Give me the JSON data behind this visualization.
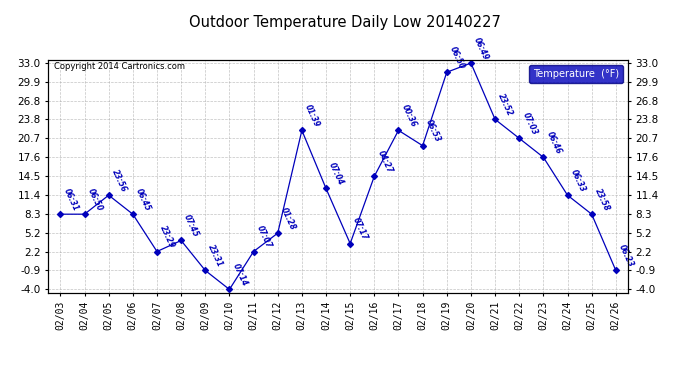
{
  "title": "Outdoor Temperature Daily Low 20140227",
  "copyright": "Copyright 2014 Cartronics.com",
  "legend_label": "Temperature  (°F)",
  "dates": [
    "02/03",
    "02/04",
    "02/05",
    "02/06",
    "02/07",
    "02/08",
    "02/09",
    "02/10",
    "02/11",
    "02/12",
    "02/13",
    "02/14",
    "02/15",
    "02/16",
    "02/17",
    "02/18",
    "02/19",
    "02/20",
    "02/21",
    "02/22",
    "02/23",
    "02/24",
    "02/25",
    "02/26"
  ],
  "temps": [
    8.3,
    8.3,
    11.4,
    8.3,
    2.2,
    4.0,
    -0.9,
    -4.0,
    2.2,
    5.2,
    22.0,
    12.5,
    3.5,
    14.5,
    22.0,
    19.5,
    31.5,
    33.0,
    23.8,
    20.7,
    17.6,
    11.4,
    8.3,
    -0.9
  ],
  "time_labels": [
    "06:31",
    "06:50",
    "23:56",
    "06:45",
    "23:29",
    "07:45",
    "23:31",
    "07:14",
    "07:07",
    "01:28",
    "01:39",
    "07:04",
    "07:17",
    "04:27",
    "00:36",
    "06:53",
    "06:50",
    "06:49",
    "23:52",
    "07:03",
    "06:46",
    "06:33",
    "23:58",
    "06:23"
  ],
  "ylim": [
    -4.0,
    33.0
  ],
  "yticks": [
    -4.0,
    -0.9,
    2.2,
    5.2,
    8.3,
    11.4,
    14.5,
    17.6,
    20.7,
    23.8,
    26.8,
    29.9,
    33.0
  ],
  "line_color": "#0000BB",
  "bg_color": "#FFFFFF",
  "grid_color": "#AAAAAA",
  "plot_bg": "#EEEEFF"
}
